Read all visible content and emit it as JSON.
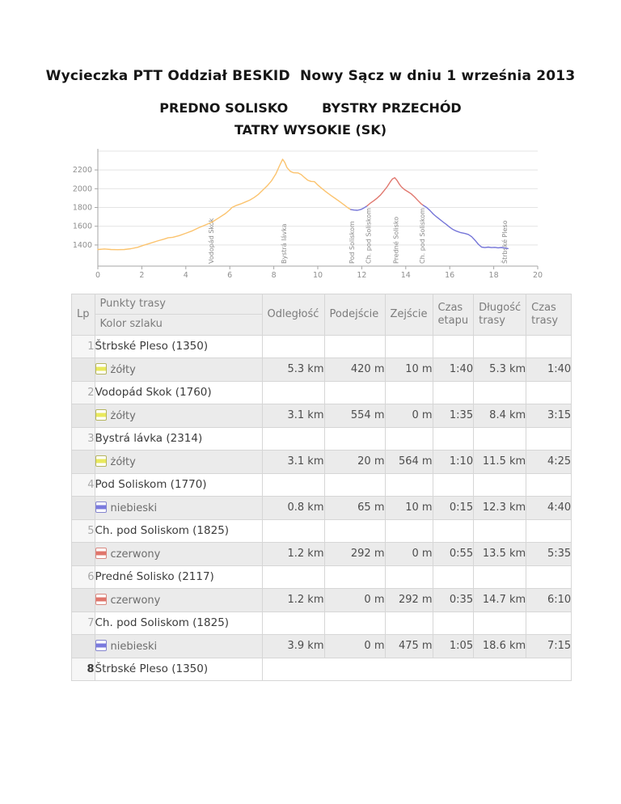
{
  "header": {
    "title": "Wycieczka PTT Oddział BESKID  Nowy Sącz w dniu 1 września 2013",
    "subtitle_left": "PREDNO SOLISKO",
    "subtitle_right": "BYSTRY PRZECHÓD",
    "subtitle2": "TATRY WYSOKIE (SK)"
  },
  "chart_data": {
    "type": "line",
    "title": "",
    "xlabel": "",
    "ylabel": "",
    "xlim": [
      0,
      20
    ],
    "ylim": [
      1175,
      2425
    ],
    "x_ticks": [
      0,
      2,
      4,
      6,
      8,
      10,
      12,
      14,
      16,
      18,
      20
    ],
    "y_ticks": [
      1400,
      1600,
      1800,
      2000,
      2200
    ],
    "grid": "horizontal",
    "legend": "none",
    "axis_color": "#a6a6a6",
    "grid_color": "#e4e4e4",
    "tick_label_color": "#8f8f8f",
    "waypoint_label_color": "#8a8a8a",
    "series": [
      {
        "name": "yellow-trail-segment",
        "color": "#fbc36e",
        "points": [
          [
            0,
            1352
          ],
          [
            0.3,
            1358
          ],
          [
            0.6,
            1352
          ],
          [
            0.9,
            1350
          ],
          [
            1.2,
            1352
          ],
          [
            1.5,
            1360
          ],
          [
            1.8,
            1375
          ],
          [
            2.1,
            1398
          ],
          [
            2.4,
            1420
          ],
          [
            2.7,
            1442
          ],
          [
            3.0,
            1462
          ],
          [
            3.2,
            1478
          ],
          [
            3.4,
            1482
          ],
          [
            3.7,
            1500
          ],
          [
            4.0,
            1525
          ],
          [
            4.3,
            1552
          ],
          [
            4.6,
            1585
          ],
          [
            4.9,
            1615
          ],
          [
            5.2,
            1645
          ],
          [
            5.5,
            1690
          ],
          [
            5.8,
            1735
          ],
          [
            6.0,
            1775
          ],
          [
            6.1,
            1800
          ],
          [
            6.3,
            1822
          ],
          [
            6.5,
            1838
          ],
          [
            6.7,
            1858
          ],
          [
            6.9,
            1878
          ],
          [
            7.1,
            1905
          ],
          [
            7.3,
            1940
          ],
          [
            7.5,
            1985
          ],
          [
            7.7,
            2030
          ],
          [
            7.9,
            2085
          ],
          [
            8.1,
            2160
          ],
          [
            8.25,
            2240
          ],
          [
            8.4,
            2314
          ],
          [
            8.5,
            2280
          ],
          [
            8.6,
            2225
          ],
          [
            8.75,
            2185
          ],
          [
            8.9,
            2170
          ],
          [
            9.1,
            2168
          ],
          [
            9.25,
            2150
          ],
          [
            9.4,
            2118
          ],
          [
            9.55,
            2090
          ],
          [
            9.7,
            2078
          ],
          [
            9.85,
            2075
          ],
          [
            10.0,
            2040
          ],
          [
            10.2,
            2000
          ],
          [
            10.4,
            1962
          ],
          [
            10.6,
            1928
          ],
          [
            10.8,
            1895
          ],
          [
            11.0,
            1862
          ],
          [
            11.2,
            1828
          ],
          [
            11.35,
            1800
          ],
          [
            11.5,
            1778
          ]
        ]
      },
      {
        "name": "blue-trail-segment-1",
        "color": "#7575d8",
        "points": [
          [
            11.5,
            1778
          ],
          [
            11.65,
            1772
          ],
          [
            11.8,
            1770
          ],
          [
            11.95,
            1778
          ],
          [
            12.1,
            1795
          ],
          [
            12.25,
            1818
          ]
        ]
      },
      {
        "name": "red-trail-segment",
        "color": "#e0776e",
        "points": [
          [
            12.25,
            1818
          ],
          [
            12.4,
            1848
          ],
          [
            12.55,
            1872
          ],
          [
            12.7,
            1900
          ],
          [
            12.85,
            1932
          ],
          [
            13.0,
            1975
          ],
          [
            13.15,
            2020
          ],
          [
            13.3,
            2075
          ],
          [
            13.4,
            2105
          ],
          [
            13.5,
            2117
          ],
          [
            13.6,
            2090
          ],
          [
            13.7,
            2052
          ],
          [
            13.8,
            2020
          ],
          [
            13.95,
            1990
          ],
          [
            14.1,
            1968
          ],
          [
            14.25,
            1945
          ],
          [
            14.4,
            1912
          ],
          [
            14.55,
            1875
          ],
          [
            14.7,
            1840
          ],
          [
            14.8,
            1822
          ]
        ]
      },
      {
        "name": "blue-trail-segment-2",
        "color": "#7575d8",
        "points": [
          [
            14.8,
            1822
          ],
          [
            14.95,
            1800
          ],
          [
            15.1,
            1768
          ],
          [
            15.25,
            1730
          ],
          [
            15.4,
            1700
          ],
          [
            15.55,
            1672
          ],
          [
            15.7,
            1645
          ],
          [
            15.85,
            1618
          ],
          [
            16.0,
            1590
          ],
          [
            16.15,
            1565
          ],
          [
            16.3,
            1548
          ],
          [
            16.5,
            1532
          ],
          [
            16.7,
            1522
          ],
          [
            16.85,
            1512
          ],
          [
            17.0,
            1488
          ],
          [
            17.15,
            1450
          ],
          [
            17.3,
            1408
          ],
          [
            17.45,
            1378
          ],
          [
            17.6,
            1372
          ],
          [
            17.75,
            1378
          ],
          [
            17.9,
            1372
          ],
          [
            18.05,
            1375
          ],
          [
            18.2,
            1370
          ],
          [
            18.35,
            1373
          ],
          [
            18.5,
            1368
          ],
          [
            18.65,
            1362
          ]
        ]
      }
    ],
    "waypoints": [
      {
        "label": "Vodopád Skok",
        "km": 5.15
      },
      {
        "label": "Bystrá lávka",
        "km": 8.45
      },
      {
        "label": "Pod Soliskom",
        "km": 11.55
      },
      {
        "label": "Ch. pod Soliskom",
        "km": 12.3
      },
      {
        "label": "Predné Solisko",
        "km": 13.55
      },
      {
        "label": "Ch. pod Soliskom",
        "km": 14.75
      },
      {
        "label": "Štrbské Pleso",
        "km": 18.5
      }
    ]
  },
  "table": {
    "headers": {
      "lp": "Lp",
      "punkty": "Punkty trasy",
      "kolor": "Kolor szlaku",
      "odleglosc": "Odległość",
      "podejscie": "Podejście",
      "zejscie": "Zejście",
      "czas_etapu": "Czas etapu",
      "dlugosc": "Długość trasy",
      "czas_trasy": "Czas trasy"
    },
    "trail_colors": {
      "yellow": {
        "border": "#b5b55e",
        "stripe": "#e9e95c"
      },
      "blue": {
        "border": "#8585cf",
        "stripe": "#7a7ade"
      },
      "red": {
        "border": "#d88880",
        "stripe": "#e0756b"
      }
    },
    "rows": [
      {
        "lp": "1",
        "name": "Štrbské Pleso (1350)",
        "trail": {
          "label": "żółty",
          "color": "yellow"
        },
        "odleglosc": "5.3 km",
        "podejscie": "420 m",
        "zejscie": "10 m",
        "czas_etapu": "1:40",
        "dlugosc": "5.3 km",
        "czas_trasy": "1:40"
      },
      {
        "lp": "2",
        "name": "Vodopád Skok (1760)",
        "trail": {
          "label": "żółty",
          "color": "yellow"
        },
        "odleglosc": "3.1 km",
        "podejscie": "554 m",
        "zejscie": "0 m",
        "czas_etapu": "1:35",
        "dlugosc": "8.4 km",
        "czas_trasy": "3:15"
      },
      {
        "lp": "3",
        "name": "Bystrá lávka (2314)",
        "trail": {
          "label": "żółty",
          "color": "yellow"
        },
        "odleglosc": "3.1 km",
        "podejscie": "20 m",
        "zejscie": "564 m",
        "czas_etapu": "1:10",
        "dlugosc": "11.5 km",
        "czas_trasy": "4:25"
      },
      {
        "lp": "4",
        "name": "Pod Soliskom (1770)",
        "trail": {
          "label": "niebieski",
          "color": "blue"
        },
        "odleglosc": "0.8 km",
        "podejscie": "65 m",
        "zejscie": "10 m",
        "czas_etapu": "0:15",
        "dlugosc": "12.3 km",
        "czas_trasy": "4:40"
      },
      {
        "lp": "5",
        "name": "Ch. pod Soliskom (1825)",
        "trail": {
          "label": "czerwony",
          "color": "red"
        },
        "odleglosc": "1.2 km",
        "podejscie": "292 m",
        "zejscie": "0 m",
        "czas_etapu": "0:55",
        "dlugosc": "13.5 km",
        "czas_trasy": "5:35"
      },
      {
        "lp": "6",
        "name": "Predné Solisko (2117)",
        "trail": {
          "label": "czerwony",
          "color": "red"
        },
        "odleglosc": "1.2 km",
        "podejscie": "0 m",
        "zejscie": "292 m",
        "czas_etapu": "0:35",
        "dlugosc": "14.7 km",
        "czas_trasy": "6:10"
      },
      {
        "lp": "7",
        "name": "Ch. pod Soliskom (1825)",
        "trail": {
          "label": "niebieski",
          "color": "blue"
        },
        "odleglosc": "3.9 km",
        "podejscie": "0 m",
        "zejscie": "475 m",
        "czas_etapu": "1:05",
        "dlugosc": "18.6 km",
        "czas_trasy": "7:15"
      },
      {
        "lp": "8",
        "name": "Štrbské Pleso (1350)",
        "trail": null,
        "lp_bold": true
      }
    ]
  }
}
